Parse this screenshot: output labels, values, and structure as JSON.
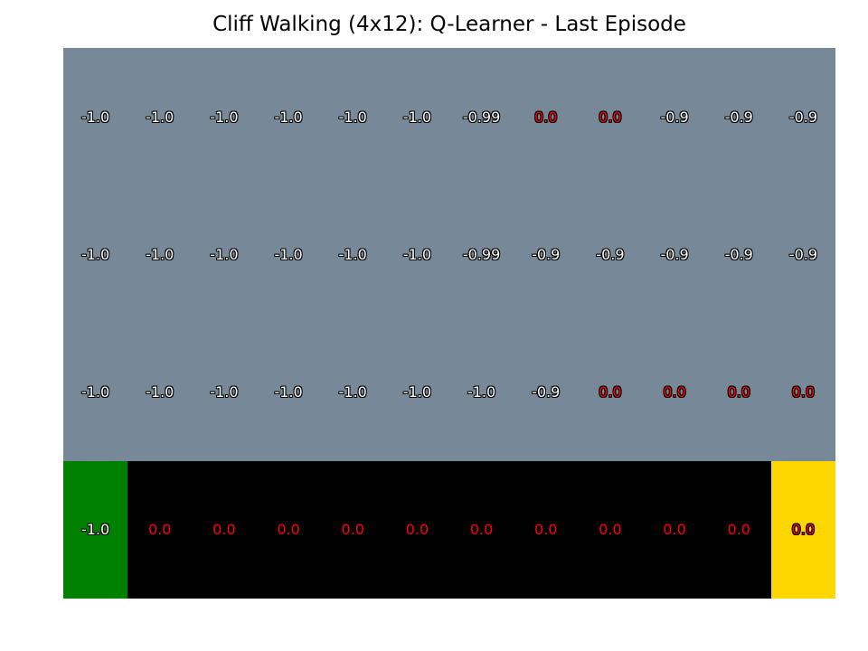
{
  "title": "Cliff Walking (4x12): Q-Learner - Last Episode",
  "colors": {
    "normal": "#778899",
    "start": "#008000",
    "cliff": "#000000",
    "goal": "#ffd700"
  },
  "grid": [
    [
      {
        "v": "-1.0",
        "fill": "normal",
        "text": "white-outline"
      },
      {
        "v": "-1.0",
        "fill": "normal",
        "text": "white-outline"
      },
      {
        "v": "-1.0",
        "fill": "normal",
        "text": "white-outline"
      },
      {
        "v": "-1.0",
        "fill": "normal",
        "text": "white-outline"
      },
      {
        "v": "-1.0",
        "fill": "normal",
        "text": "white-outline"
      },
      {
        "v": "-1.0",
        "fill": "normal",
        "text": "white-outline"
      },
      {
        "v": "-0.99",
        "fill": "normal",
        "text": "white-outline"
      },
      {
        "v": "0.0",
        "fill": "normal",
        "text": "red-outline"
      },
      {
        "v": "0.0",
        "fill": "normal",
        "text": "red-outline"
      },
      {
        "v": "-0.9",
        "fill": "normal",
        "text": "white-outline"
      },
      {
        "v": "-0.9",
        "fill": "normal",
        "text": "white-outline"
      },
      {
        "v": "-0.9",
        "fill": "normal",
        "text": "white-outline"
      }
    ],
    [
      {
        "v": "-1.0",
        "fill": "normal",
        "text": "white-outline"
      },
      {
        "v": "-1.0",
        "fill": "normal",
        "text": "white-outline"
      },
      {
        "v": "-1.0",
        "fill": "normal",
        "text": "white-outline"
      },
      {
        "v": "-1.0",
        "fill": "normal",
        "text": "white-outline"
      },
      {
        "v": "-1.0",
        "fill": "normal",
        "text": "white-outline"
      },
      {
        "v": "-1.0",
        "fill": "normal",
        "text": "white-outline"
      },
      {
        "v": "-0.99",
        "fill": "normal",
        "text": "white-outline"
      },
      {
        "v": "-0.9",
        "fill": "normal",
        "text": "white-outline"
      },
      {
        "v": "-0.9",
        "fill": "normal",
        "text": "white-outline"
      },
      {
        "v": "-0.9",
        "fill": "normal",
        "text": "white-outline"
      },
      {
        "v": "-0.9",
        "fill": "normal",
        "text": "white-outline"
      },
      {
        "v": "-0.9",
        "fill": "normal",
        "text": "white-outline"
      }
    ],
    [
      {
        "v": "-1.0",
        "fill": "normal",
        "text": "white-outline"
      },
      {
        "v": "-1.0",
        "fill": "normal",
        "text": "white-outline"
      },
      {
        "v": "-1.0",
        "fill": "normal",
        "text": "white-outline"
      },
      {
        "v": "-1.0",
        "fill": "normal",
        "text": "white-outline"
      },
      {
        "v": "-1.0",
        "fill": "normal",
        "text": "white-outline"
      },
      {
        "v": "-1.0",
        "fill": "normal",
        "text": "white-outline"
      },
      {
        "v": "-1.0",
        "fill": "normal",
        "text": "white-outline"
      },
      {
        "v": "-0.9",
        "fill": "normal",
        "text": "white-outline"
      },
      {
        "v": "0.0",
        "fill": "normal",
        "text": "red-outline"
      },
      {
        "v": "0.0",
        "fill": "normal",
        "text": "red-outline"
      },
      {
        "v": "0.0",
        "fill": "normal",
        "text": "red-outline"
      },
      {
        "v": "0.0",
        "fill": "normal",
        "text": "red-outline"
      }
    ],
    [
      {
        "v": "-1.0",
        "fill": "start",
        "text": "white-outline"
      },
      {
        "v": "0.0",
        "fill": "cliff",
        "text": "red-plain"
      },
      {
        "v": "0.0",
        "fill": "cliff",
        "text": "red-plain"
      },
      {
        "v": "0.0",
        "fill": "cliff",
        "text": "red-plain"
      },
      {
        "v": "0.0",
        "fill": "cliff",
        "text": "red-plain"
      },
      {
        "v": "0.0",
        "fill": "cliff",
        "text": "red-plain"
      },
      {
        "v": "0.0",
        "fill": "cliff",
        "text": "red-plain"
      },
      {
        "v": "0.0",
        "fill": "cliff",
        "text": "red-plain"
      },
      {
        "v": "0.0",
        "fill": "cliff",
        "text": "red-plain"
      },
      {
        "v": "0.0",
        "fill": "cliff",
        "text": "red-plain"
      },
      {
        "v": "0.0",
        "fill": "cliff",
        "text": "red-plain"
      },
      {
        "v": "0.0",
        "fill": "goal",
        "text": "red-outline"
      }
    ]
  ]
}
